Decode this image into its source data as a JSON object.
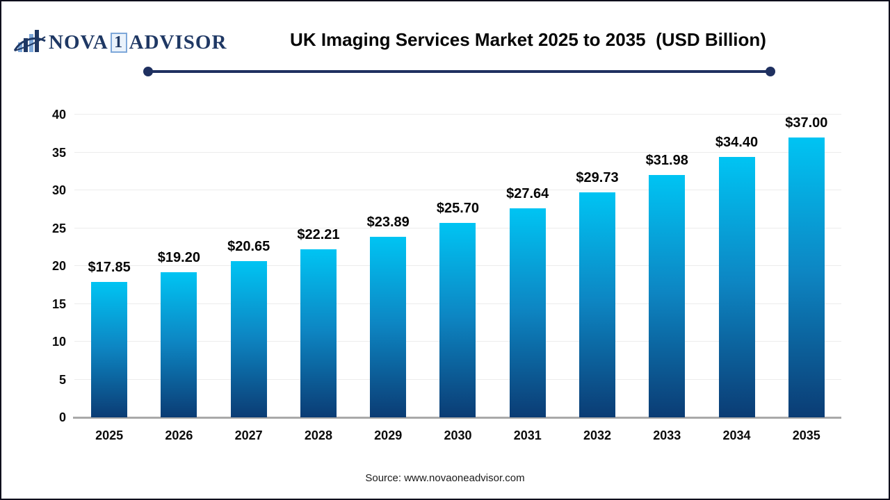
{
  "header": {
    "logo": {
      "icon": "bar-chart-swoosh-icon",
      "nova": "NOVA",
      "one": "1",
      "advisor": "ADVISOR",
      "navy": "#1f3864",
      "light_blue": "#7da7d9"
    },
    "title": "UK Imaging Services Market 2025 to 2035  (USD Billion)",
    "divider_color": "#1f3060"
  },
  "chart_data": {
    "type": "bar",
    "title": "UK Imaging Services Market 2025 to 2035 (USD Billion)",
    "categories": [
      "2025",
      "2026",
      "2027",
      "2028",
      "2029",
      "2030",
      "2031",
      "2032",
      "2033",
      "2034",
      "2035"
    ],
    "values": [
      17.85,
      19.2,
      20.65,
      22.21,
      23.89,
      25.7,
      27.64,
      29.73,
      31.98,
      34.4,
      37.0
    ],
    "value_labels": [
      "$17.85",
      "$19.20",
      "$20.65",
      "$22.21",
      "$23.89",
      "$25.70",
      "$27.64",
      "$29.73",
      "$31.98",
      "$34.40",
      "$37.00"
    ],
    "xlabel": "",
    "ylabel": "",
    "ylim": [
      0,
      40
    ],
    "yticks": [
      0,
      5,
      10,
      15,
      20,
      25,
      30,
      35,
      40
    ],
    "grid": "horizontal",
    "legend": "none",
    "bar_gradient_top": "#00c4f3",
    "bar_gradient_bottom": "#0b3c74",
    "baseline_color": "#a9a9a9",
    "gridline_color": "#ececec"
  },
  "footer": {
    "source": "Source: www.novaoneadvisor.com"
  }
}
